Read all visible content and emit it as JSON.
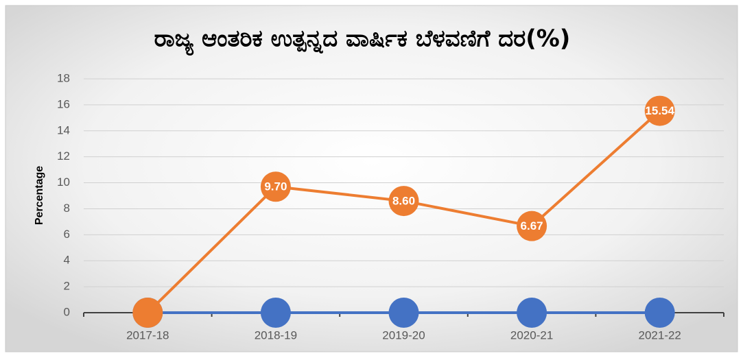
{
  "chart_data": {
    "type": "line",
    "title": "ರಾಜ್ಯ ಆಂತರಿಕ ಉತ್ಪನ್ನದ ವಾರ್ಷಿಕ ಬೆಳವಣಿಗೆ ದರ(%)",
    "y_label": "Percentage",
    "categories": [
      "2017-18",
      "2018-19",
      "2019-20",
      "2020-21",
      "2021-22"
    ],
    "series": [
      {
        "color": "#4472c4",
        "values": [
          0,
          0,
          0,
          0,
          0
        ]
      },
      {
        "color": "#ed7d31",
        "values": [
          0,
          9.7,
          8.6,
          6.67,
          15.54
        ],
        "value_labels": [
          null,
          "9.70",
          "8.60",
          "6.67",
          "15.54"
        ]
      }
    ],
    "ylim": [
      0,
      18
    ],
    "yticks": [
      0,
      2,
      4,
      6,
      8,
      10,
      12,
      14,
      16,
      18
    ],
    "grid": true
  }
}
